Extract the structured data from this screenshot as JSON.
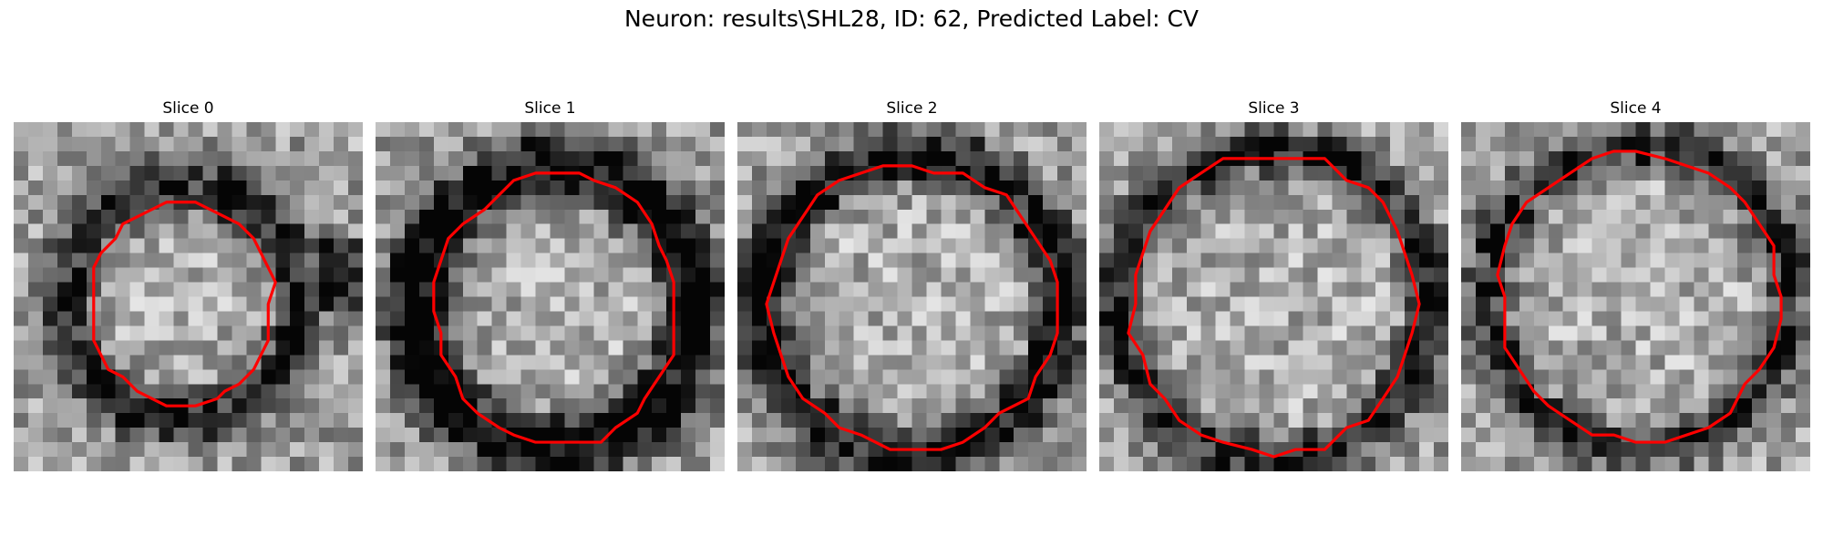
{
  "figure": {
    "title": "Neuron: results\\SHL28, ID: 62, Predicted Label: CV"
  },
  "panels": [
    {
      "title": "Slice 0"
    },
    {
      "title": "Slice 1"
    },
    {
      "title": "Slice 2"
    },
    {
      "title": "Slice 3"
    },
    {
      "title": "Slice 4"
    }
  ],
  "style": {
    "outline_color": "#ff0000",
    "colormap": "gray"
  }
}
